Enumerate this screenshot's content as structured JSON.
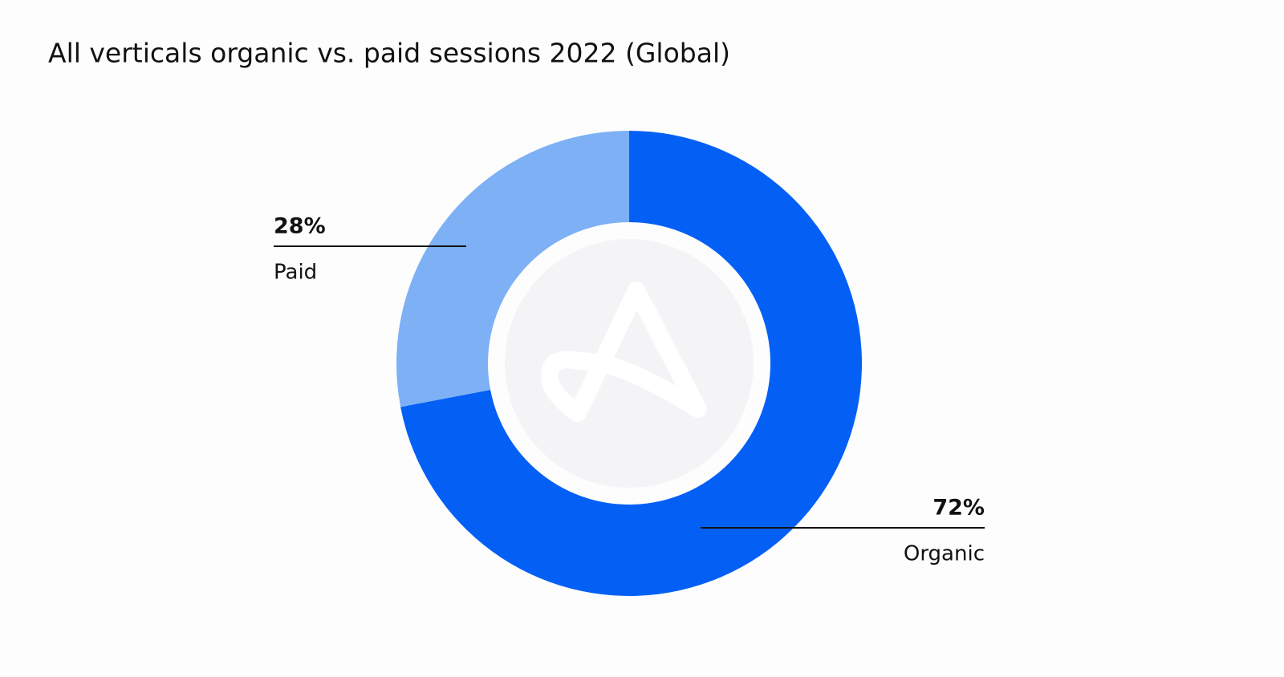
{
  "chart_data": {
    "type": "donut",
    "title": "All verticals organic vs. paid sessions 2022 (Global)",
    "categories": [
      "Organic",
      "Paid"
    ],
    "values": [
      72,
      28
    ],
    "value_labels": [
      "72%",
      "28%"
    ],
    "colors": [
      "#0460f5",
      "#7db0f5"
    ]
  }
}
